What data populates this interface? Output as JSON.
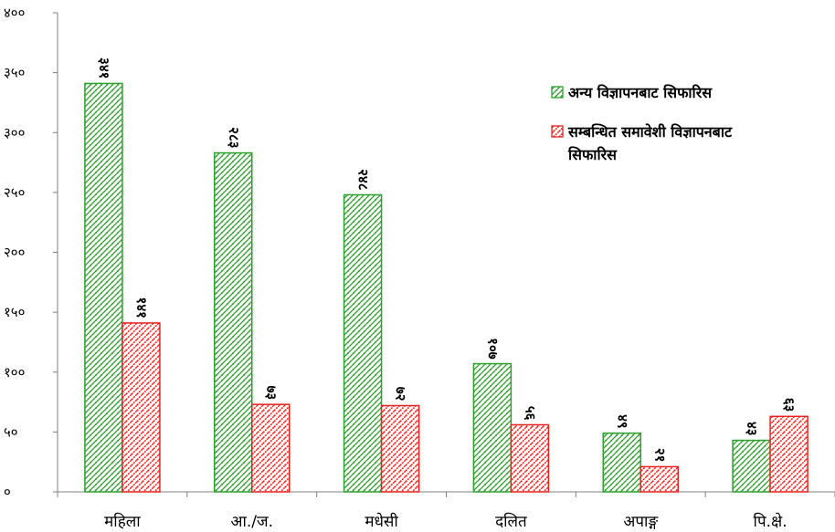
{
  "chart_data": {
    "type": "bar",
    "categories": [
      "महिला",
      "आ./ज.",
      "मधेसी",
      "दलित",
      "अपाङ्ग",
      "पि.क्षे."
    ],
    "series": [
      {
        "name": "अन्य विज्ञापनबाट सिफारिस",
        "values": [
          341,
          283,
          248,
          107,
          49,
          43
        ],
        "labels": [
          "३४१",
          "२८३",
          "२४८",
          "१०७",
          "४९",
          "४३"
        ],
        "color": "#2ca02c"
      },
      {
        "name": "सम्बन्धित समावेशी विज्ञापनबाट सिफारिस",
        "values": [
          141,
          73,
          72,
          56,
          21,
          63
        ],
        "labels": [
          "१४१",
          "७३",
          "७२",
          "५६",
          "२१",
          "६३"
        ],
        "color": "#e8231f"
      }
    ],
    "yticks": [
      0,
      50,
      100,
      150,
      200,
      250,
      300,
      350,
      400
    ],
    "ytick_labels": [
      "०",
      "५०",
      "१००",
      "१५०",
      "२००",
      "२५०",
      "३००",
      "३५०",
      "४००"
    ],
    "ylim": [
      0,
      400
    ],
    "legend_position": "top-right",
    "grid": false
  }
}
